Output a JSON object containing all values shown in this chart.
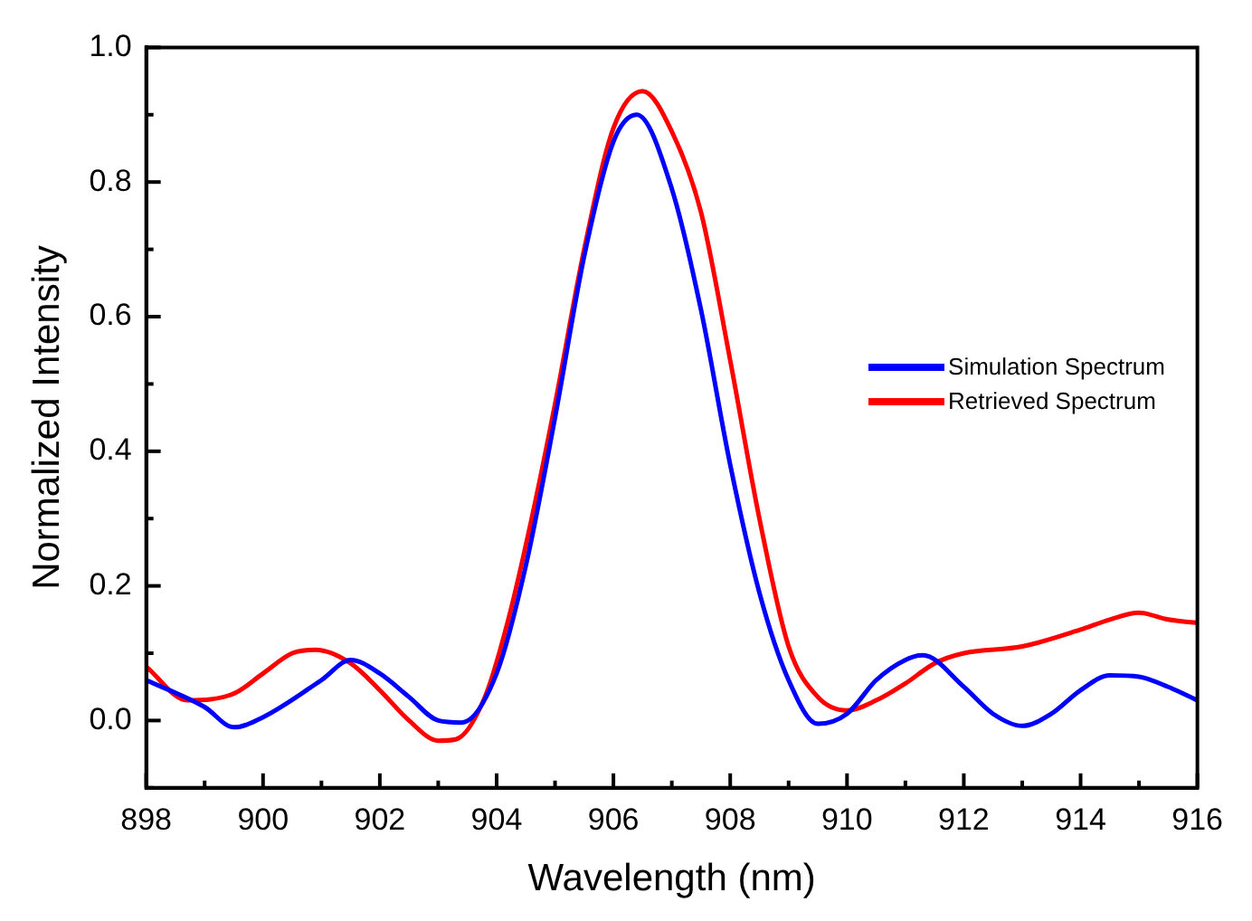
{
  "chart_data": {
    "type": "line",
    "xlabel": "Wavelength (nm)",
    "ylabel": "Normalized Intensity",
    "xlim": [
      898,
      916
    ],
    "xticks": [
      898,
      {
        "value": 899,
        "label": null
      },
      900,
      {
        "value": 901,
        "label": null
      },
      902,
      {
        "value": 903,
        "label": null
      },
      904,
      {
        "value": 905,
        "label": null
      },
      906,
      {
        "value": 907,
        "label": null
      },
      908,
      {
        "value": 909,
        "label": null
      },
      910,
      {
        "value": 911,
        "label": null
      },
      912,
      {
        "value": 913,
        "label": null
      },
      914,
      {
        "value": 915,
        "label": null
      },
      916
    ],
    "ylim": [
      -0.1,
      1.0
    ],
    "yticks": [
      {
        "value": -0.1,
        "label": null
      },
      {
        "value": 0,
        "label": "0.0"
      },
      {
        "value": 0.1,
        "label": null
      },
      {
        "value": 0.2,
        "label": "0.2"
      },
      {
        "value": 0.3,
        "label": null
      },
      {
        "value": 0.4,
        "label": "0.4"
      },
      {
        "value": 0.5,
        "label": null
      },
      {
        "value": 0.6,
        "label": "0.6"
      },
      {
        "value": 0.7,
        "label": null
      },
      {
        "value": 0.8,
        "label": "0.8"
      },
      {
        "value": 0.9,
        "label": null
      },
      {
        "value": 1.0,
        "label": "1.0"
      }
    ],
    "grid": false,
    "legend": "right",
    "line_style": "solid",
    "marker": "none",
    "series": [
      {
        "name": "Simulation Spectrum",
        "color": "#0000ff",
        "x": [
          898,
          899,
          899.5,
          900,
          901,
          901.5,
          902,
          902.5,
          903,
          903.4,
          904,
          904.5,
          905,
          905.5,
          906,
          906.4,
          907,
          907.5,
          908,
          908.5,
          909,
          909.5,
          910,
          910.5,
          911,
          911.3,
          912,
          912.5,
          913,
          913.5,
          914,
          914.5,
          915,
          915.5,
          916
        ],
        "values": [
          0.06,
          0.02,
          -0.01,
          0.005,
          0.06,
          0.09,
          0.07,
          0.035,
          0.0,
          -0.003,
          0.07,
          0.23,
          0.45,
          0.69,
          0.86,
          0.9,
          0.79,
          0.61,
          0.38,
          0.19,
          0.06,
          -0.005,
          0.01,
          0.06,
          0.09,
          0.097,
          0.05,
          0.01,
          -0.008,
          0.01,
          0.045,
          0.067,
          0.065,
          0.05,
          0.03
        ]
      },
      {
        "name": "Retrieved Spectrum",
        "color": "#ff0000",
        "x": [
          898,
          898.7,
          899.5,
          900,
          900.5,
          900.9,
          901.5,
          902,
          902.5,
          903,
          903.3,
          903.8,
          904.2,
          904.6,
          905,
          905.5,
          906,
          906.5,
          907,
          907.5,
          908,
          908.5,
          909,
          909.5,
          910,
          910.5,
          911,
          911.5,
          912,
          913,
          914,
          914.5,
          915,
          915.5,
          916
        ],
        "values": [
          0.08,
          0.03,
          0.04,
          0.07,
          0.1,
          0.105,
          0.085,
          0.045,
          0.0,
          -0.03,
          -0.028,
          0.035,
          0.15,
          0.3,
          0.47,
          0.7,
          0.88,
          0.935,
          0.875,
          0.755,
          0.535,
          0.3,
          0.11,
          0.035,
          0.015,
          0.03,
          0.055,
          0.085,
          0.1,
          0.11,
          0.135,
          0.15,
          0.16,
          0.15,
          0.145
        ]
      }
    ]
  }
}
